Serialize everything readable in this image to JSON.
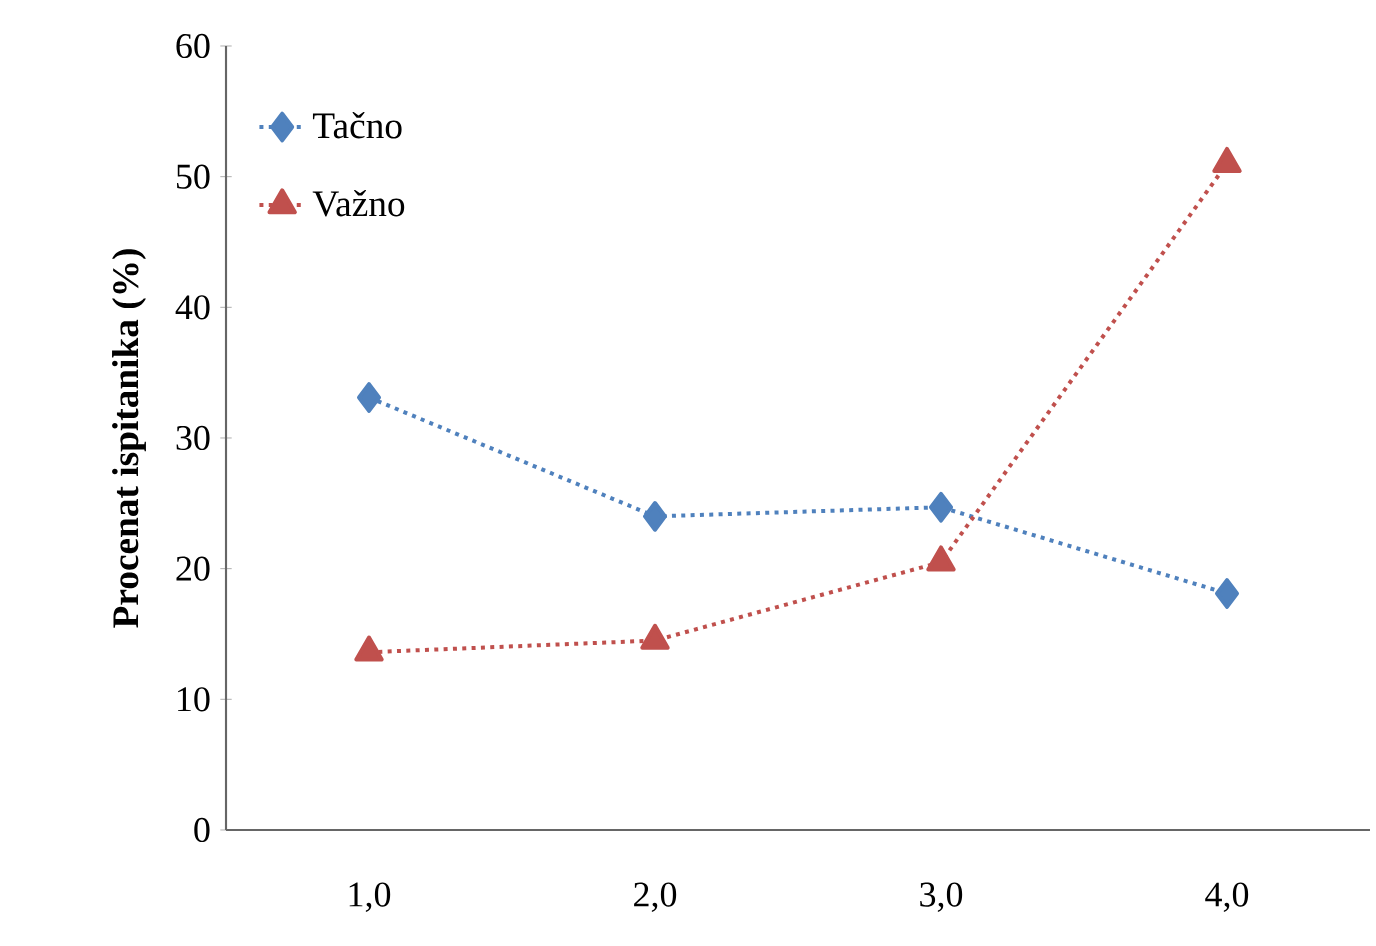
{
  "chart_data": {
    "type": "line",
    "ylabel": "Procenat ispitanika (%)",
    "categories": [
      "1,0",
      "2,0",
      "3,0",
      "4,0"
    ],
    "series": [
      {
        "name": "Tačno",
        "color": "#4f81bd",
        "marker": "diamond",
        "values": [
          33.1,
          24.0,
          24.7,
          18.1
        ]
      },
      {
        "name": "Važno",
        "color": "#c0504d",
        "marker": "triangle",
        "values": [
          13.6,
          14.5,
          20.5,
          51.0
        ]
      }
    ],
    "ylim": [
      0,
      60
    ],
    "yticks": [
      0,
      10,
      20,
      30,
      40,
      50,
      60
    ],
    "line_style": "dotted",
    "grid": false,
    "legend": "top left"
  }
}
